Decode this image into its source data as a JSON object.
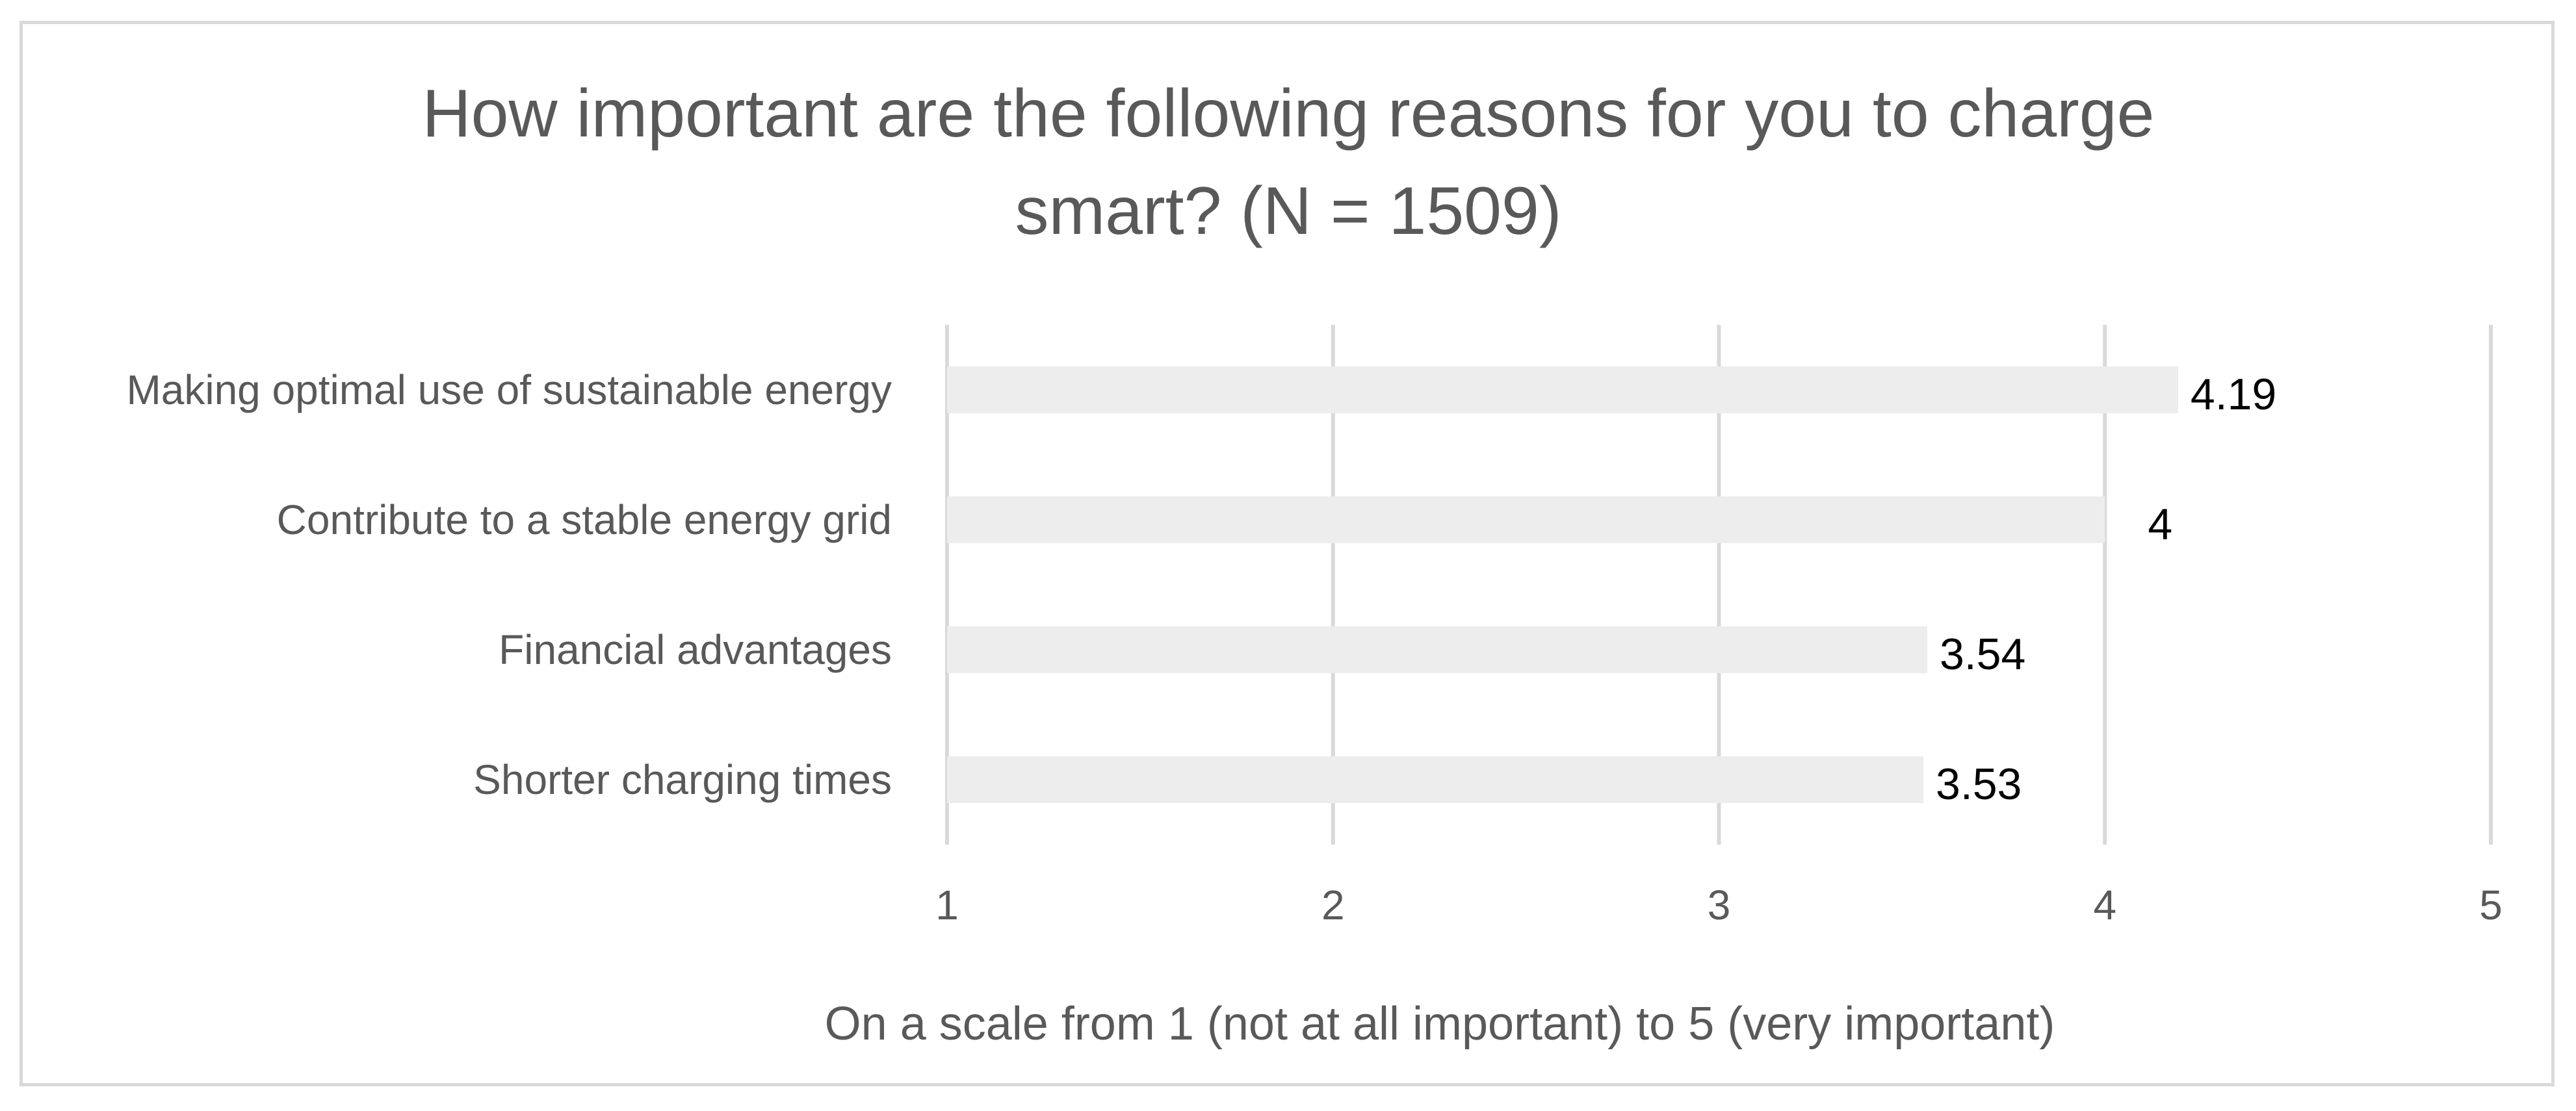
{
  "chart_data": {
    "type": "bar",
    "orientation": "horizontal",
    "title_lines": [
      "How important are the following reasons for you to charge",
      "smart? (N = 1509)"
    ],
    "categories": [
      "Making optimal use of sustainable energy",
      "Contribute to a stable energy grid",
      "Financial advantages",
      "Shorter charging times"
    ],
    "values": [
      4.19,
      4,
      3.54,
      3.53
    ],
    "data_labels": [
      "4.19",
      "4",
      "3.54",
      "3.53"
    ],
    "xlabel": "On a scale from 1 (not at all important) to 5 (very important)",
    "ylabel": "",
    "xlim": [
      1,
      5
    ],
    "xticks": [
      "1",
      "2",
      "3",
      "4",
      "5"
    ],
    "grid": "vertical",
    "legend": "none",
    "colors": {
      "bar": "#ededed",
      "grid": "#d9d9d9",
      "text": "#595959",
      "data_label": "#000000",
      "border": "#d9d9d9"
    }
  }
}
